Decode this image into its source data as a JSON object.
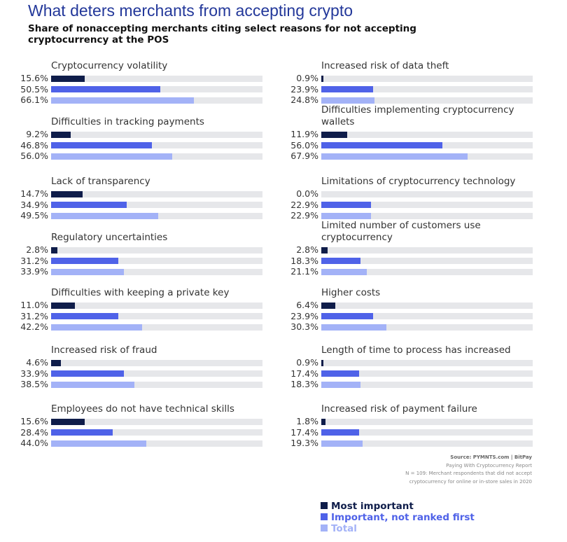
{
  "chart_data": {
    "type": "bar",
    "orientation": "horizontal",
    "title": "What deters merchants from accepting crypto",
    "subtitle": "Share of nonaccepting merchants citing select reasons for not accepting cryptocurrency at the POS",
    "categories": [
      "Cryptocurrency volatility",
      "Difficulties in tracking payments",
      "Lack of transparency",
      "Regulatory uncertainties",
      "Difficulties with keeping a private key",
      "Increased risk of fraud",
      "Employees do not have technical skills",
      "Increased risk of data theft",
      "Difficulties implementing cryptocurrency wallets",
      "Limitations of cryptocurrency technology",
      "Limited number of customers use cryptocurrency",
      "Higher costs",
      "Length of time to process has increased",
      "Increased risk of payment failure"
    ],
    "series": [
      {
        "name": "Most important",
        "color": "#0f1d4a",
        "values": [
          15.6,
          9.2,
          14.7,
          2.8,
          11.0,
          4.6,
          15.6,
          0.9,
          11.9,
          0.0,
          2.8,
          6.4,
          0.9,
          1.8
        ],
        "value_labels": [
          "15.6%",
          "9.2%",
          "14.7%",
          "2.8%",
          "11.0%",
          "4.6%",
          "15.6%",
          "0.9%",
          "11.9%",
          "0.0%",
          "2.8%",
          "6.4%",
          "0.9%",
          "1.8%"
        ]
      },
      {
        "name": "Important, not ranked first",
        "color": "#4f62e8",
        "values": [
          50.5,
          46.8,
          34.9,
          31.2,
          31.2,
          33.9,
          28.4,
          23.9,
          56.0,
          22.9,
          18.3,
          23.9,
          17.4,
          17.4
        ],
        "value_labels": [
          "50.5%",
          "46.8%",
          "34.9%",
          "31.2%",
          "31.2%",
          "33.9%",
          "28.4%",
          "23.9%",
          "56.0%",
          "22.9%",
          "18.3%",
          "23.9%",
          "17.4%",
          "17.4%"
        ]
      },
      {
        "name": "Total",
        "color": "#a3b2f7",
        "values": [
          66.1,
          56.0,
          49.5,
          33.9,
          42.2,
          38.5,
          44.0,
          24.8,
          67.9,
          22.9,
          21.1,
          30.3,
          18.3,
          19.3
        ],
        "value_labels": [
          "66.1%",
          "56.0%",
          "49.5%",
          "33.9%",
          "42.2%",
          "38.5%",
          "44.0%",
          "24.8%",
          "67.9%",
          "22.9%",
          "21.1%",
          "30.3%",
          "18.3%",
          "19.3%"
        ]
      }
    ],
    "xlim": [
      0,
      98
    ],
    "notes": [
      "Source: PYMNTS.com | BitPay",
      "Paying With Cryptocurrency Report",
      "N = 109: Merchant respondents that did not accept cryptocurrency for online or in-store sales in 2020"
    ]
  }
}
